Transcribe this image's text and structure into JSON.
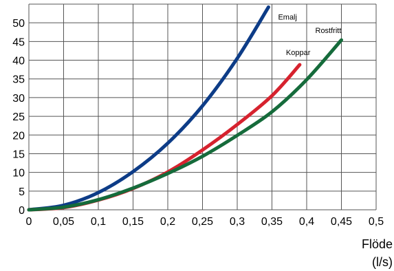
{
  "chart_data": {
    "type": "line",
    "title": "",
    "xlabel_line1": "Flöde",
    "xlabel_line2": "(l/s)",
    "ylabel": "",
    "xlim": [
      0,
      0.5
    ],
    "ylim": [
      0,
      55
    ],
    "grid": true,
    "x_ticks": [
      "0",
      "0,05",
      "0,1",
      "0,15",
      "0,2",
      "0,25",
      "0,3",
      "0,35",
      "0,4",
      "0,45",
      "0,5"
    ],
    "y_ticks": [
      "0",
      "5",
      "10",
      "15",
      "20",
      "25",
      "30",
      "35",
      "40",
      "45",
      "50"
    ],
    "series": [
      {
        "name": "Emalj",
        "color": "#0d3c87",
        "points": [
          [
            0,
            0
          ],
          [
            0.05,
            1.2
          ],
          [
            0.1,
            4.6
          ],
          [
            0.15,
            10.2
          ],
          [
            0.2,
            17.8
          ],
          [
            0.25,
            27.8
          ],
          [
            0.3,
            40.5
          ],
          [
            0.345,
            54.2
          ]
        ]
      },
      {
        "name": "Koppar",
        "color": "#d6222e",
        "points": [
          [
            0,
            0
          ],
          [
            0.05,
            0.6
          ],
          [
            0.1,
            2.6
          ],
          [
            0.15,
            5.7
          ],
          [
            0.2,
            10.1
          ],
          [
            0.25,
            16.0
          ],
          [
            0.3,
            22.8
          ],
          [
            0.35,
            30.5
          ],
          [
            0.39,
            38.8
          ]
        ]
      },
      {
        "name": "Rostfritt",
        "color": "#156b3b",
        "points": [
          [
            0,
            0
          ],
          [
            0.05,
            0.7
          ],
          [
            0.1,
            2.7
          ],
          [
            0.15,
            5.8
          ],
          [
            0.2,
            9.7
          ],
          [
            0.25,
            14.3
          ],
          [
            0.3,
            19.9
          ],
          [
            0.35,
            26.2
          ],
          [
            0.4,
            34.8
          ],
          [
            0.45,
            45.4
          ]
        ]
      }
    ]
  }
}
